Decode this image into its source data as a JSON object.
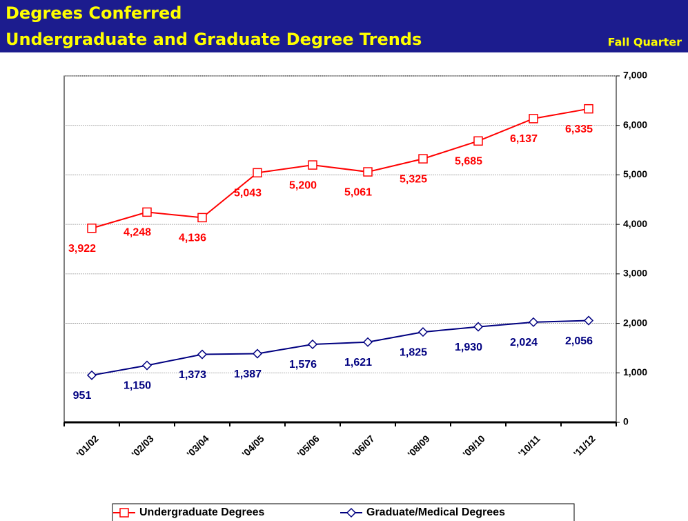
{
  "chart_data": {
    "type": "line",
    "title": "Degrees Conferred",
    "subtitle": "Undergraduate and Graduate Degree Trends",
    "annotation": "Fall Quarter",
    "categories": [
      "'01/02",
      "'02/03",
      "'03/04",
      "'04/05",
      "'05/06",
      "'06/07",
      "'08/09",
      "'09/10",
      "'10/11",
      "'11/12"
    ],
    "series": [
      {
        "name": "Undergraduate Degrees",
        "color": "#ff0000",
        "marker": "square",
        "values": [
          3922,
          4248,
          4136,
          5043,
          5200,
          5061,
          5325,
          5685,
          6137,
          6335
        ],
        "value_labels": [
          "3,922",
          "4,248",
          "4,136",
          "5,043",
          "5,200",
          "5,061",
          "5,325",
          "5,685",
          "6,137",
          "6,335"
        ]
      },
      {
        "name": "Graduate/Medical Degrees",
        "color": "#000080",
        "marker": "diamond",
        "values": [
          951,
          1150,
          1373,
          1387,
          1576,
          1621,
          1825,
          1930,
          2024,
          2056
        ],
        "value_labels": [
          "951",
          "1,150",
          "1,373",
          "1,387",
          "1,576",
          "1,621",
          "1,825",
          "1,930",
          "2,024",
          "2,056"
        ]
      }
    ],
    "ylim": [
      0,
      7000
    ],
    "yticks": [
      0,
      {
        "value": 1000,
        "label": "1,000"
      },
      {
        "value": 2000,
        "label": "2,000"
      },
      {
        "value": 3000,
        "label": "3,000"
      },
      {
        "value": 4000,
        "label": "4,000"
      },
      {
        "value": 5000,
        "label": "5,000"
      },
      {
        "value": 6000,
        "label": "6,000"
      },
      {
        "value": 7000,
        "label": "7,000"
      }
    ],
    "grid": true,
    "legend": "bottom"
  }
}
